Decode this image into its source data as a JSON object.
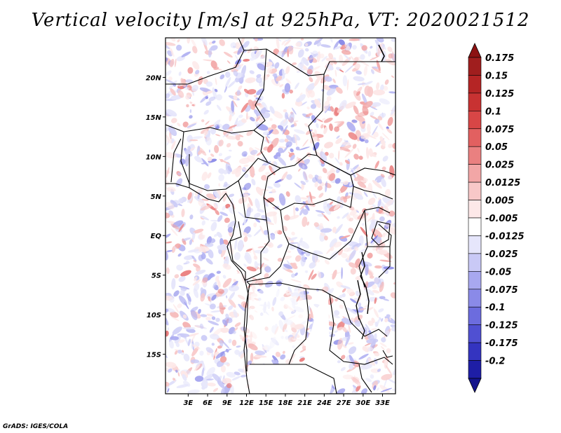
{
  "title": "Vertical velocity [m/s] at 925hPa, VT: 2020021512",
  "footer": "GrADS: IGES/COLA",
  "map": {
    "region": "Central Africa",
    "lat_range": [
      -20,
      25
    ],
    "lon_range": [
      -0.5,
      35
    ],
    "lat_ticks": [
      {
        "value": 20,
        "label": "20N"
      },
      {
        "value": 15,
        "label": "15N"
      },
      {
        "value": 10,
        "label": "10N"
      },
      {
        "value": 5,
        "label": "5N"
      },
      {
        "value": 0,
        "label": "EQ"
      },
      {
        "value": -5,
        "label": "5S"
      },
      {
        "value": -10,
        "label": "10S"
      },
      {
        "value": -15,
        "label": "15S"
      }
    ],
    "lon_ticks": [
      {
        "value": 3,
        "label": "3E"
      },
      {
        "value": 6,
        "label": "6E"
      },
      {
        "value": 9,
        "label": "9E"
      },
      {
        "value": 12,
        "label": "12E"
      },
      {
        "value": 15,
        "label": "15E"
      },
      {
        "value": 18,
        "label": "18E"
      },
      {
        "value": 21,
        "label": "21E"
      },
      {
        "value": 24,
        "label": "24E"
      },
      {
        "value": 27,
        "label": "27E"
      },
      {
        "value": 30,
        "label": "30E"
      },
      {
        "value": 33,
        "label": "33E"
      }
    ]
  },
  "colorbar": {
    "levels": [
      {
        "label": "0.175",
        "color": "#a01e1e"
      },
      {
        "label": "0.15",
        "color": "#b52525"
      },
      {
        "label": "0.125",
        "color": "#c83232"
      },
      {
        "label": "0.1",
        "color": "#d84646"
      },
      {
        "label": "0.075",
        "color": "#e26060"
      },
      {
        "label": "0.05",
        "color": "#ea8080"
      },
      {
        "label": "0.025",
        "color": "#f2a6a6"
      },
      {
        "label": "0.0125",
        "color": "#f8c8c8"
      },
      {
        "label": "0.005",
        "color": "#fde8e8"
      },
      {
        "label": "-0.005",
        "color": "#ffffff"
      },
      {
        "label": "-0.0125",
        "color": "#e6e6fb"
      },
      {
        "label": "-0.025",
        "color": "#c9c9f6"
      },
      {
        "label": "-0.05",
        "color": "#a8a8f0"
      },
      {
        "label": "-0.075",
        "color": "#8a8ae8"
      },
      {
        "label": "-0.1",
        "color": "#6c6cde"
      },
      {
        "label": "-0.125",
        "color": "#5050d2"
      },
      {
        "label": "-0.175",
        "color": "#3434c0"
      },
      {
        "label": "-0.2",
        "color": "#1e1ea6"
      }
    ],
    "top_arrow_color": "#8c1212",
    "bottom_arrow_color": "#14148c"
  }
}
